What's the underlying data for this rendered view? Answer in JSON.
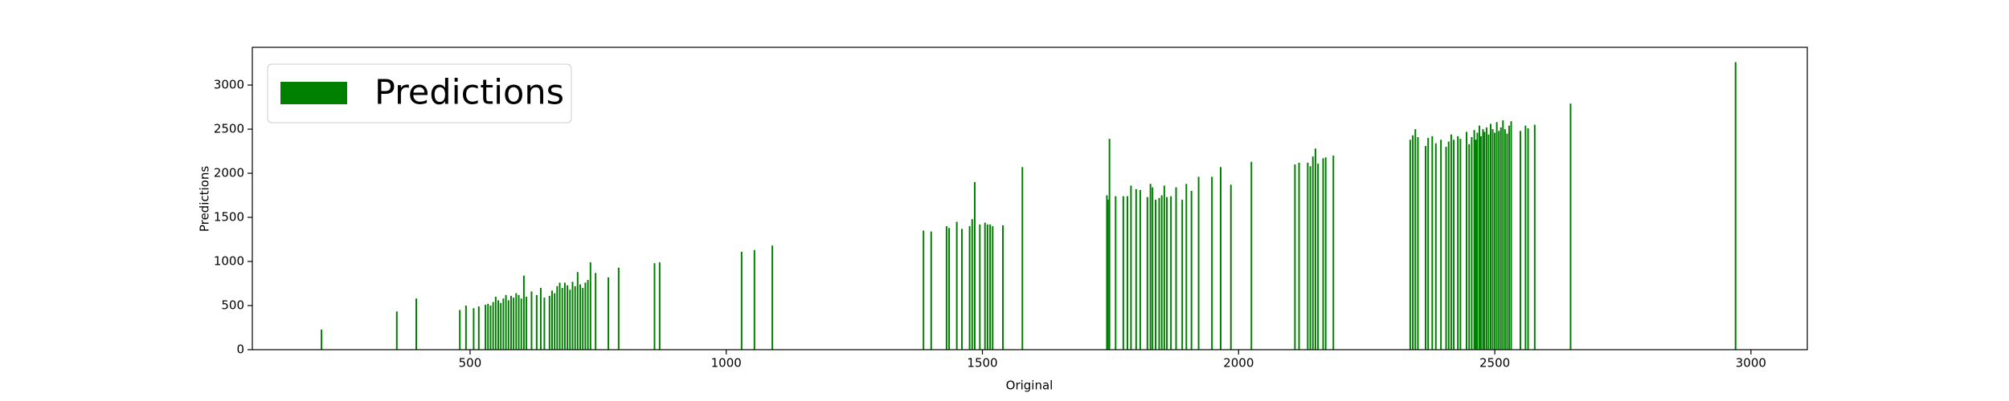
{
  "chart_data": {
    "type": "bar",
    "xlabel": "Original",
    "ylabel": "Predictions",
    "x": [
      210,
      357,
      395,
      480,
      492,
      507,
      517,
      530,
      535,
      540,
      545,
      550,
      555,
      560,
      565,
      570,
      575,
      580,
      585,
      590,
      595,
      600,
      605,
      610,
      620,
      630,
      638,
      645,
      655,
      660,
      665,
      670,
      675,
      680,
      685,
      690,
      695,
      700,
      705,
      710,
      715,
      720,
      725,
      730,
      735,
      745,
      770,
      790,
      860,
      870,
      1030,
      1055,
      1090,
      1385,
      1400,
      1430,
      1435,
      1450,
      1460,
      1475,
      1480,
      1485,
      1495,
      1505,
      1510,
      1515,
      1520,
      1540,
      1578,
      1743,
      1745,
      1748,
      1760,
      1775,
      1783,
      1790,
      1800,
      1808,
      1822,
      1828,
      1832,
      1838,
      1845,
      1850,
      1855,
      1860,
      1868,
      1878,
      1890,
      1898,
      1908,
      1922,
      1948,
      1965,
      1985,
      2025,
      2110,
      2118,
      2135,
      2140,
      2145,
      2150,
      2155,
      2165,
      2170,
      2185,
      2335,
      2340,
      2345,
      2350,
      2365,
      2370,
      2378,
      2385,
      2395,
      2405,
      2410,
      2415,
      2420,
      2428,
      2433,
      2445,
      2450,
      2455,
      2460,
      2463,
      2466,
      2470,
      2473,
      2477,
      2480,
      2484,
      2488,
      2492,
      2496,
      2500,
      2504,
      2508,
      2512,
      2516,
      2520,
      2524,
      2528,
      2532,
      2550,
      2560,
      2565,
      2578,
      2648,
      2970
    ],
    "series": [
      {
        "name": "Predictions",
        "color": "#008000",
        "values": [
          228,
          433,
          580,
          450,
          500,
          470,
          490,
          510,
          520,
          500,
          540,
          600,
          560,
          530,
          580,
          620,
          560,
          610,
          590,
          640,
          620,
          580,
          840,
          600,
          660,
          620,
          700,
          590,
          610,
          670,
          640,
          720,
          760,
          700,
          760,
          730,
          680,
          770,
          720,
          880,
          740,
          700,
          760,
          790,
          990,
          870,
          820,
          930,
          980,
          990,
          1110,
          1130,
          1180,
          1350,
          1340,
          1400,
          1380,
          1450,
          1370,
          1400,
          1480,
          1900,
          1420,
          1440,
          1420,
          1420,
          1400,
          1410,
          2070,
          1750,
          1700,
          2390,
          1740,
          1740,
          1740,
          1860,
          1820,
          1810,
          1730,
          1880,
          1840,
          1700,
          1720,
          1750,
          1860,
          1730,
          1740,
          1840,
          1700,
          1880,
          1800,
          1960,
          1960,
          2070,
          1870,
          2130,
          2100,
          2120,
          2120,
          2080,
          2190,
          2280,
          2110,
          2170,
          2180,
          2200,
          2380,
          2430,
          2500,
          2410,
          2310,
          2400,
          2420,
          2340,
          2380,
          2300,
          2360,
          2440,
          2380,
          2420,
          2390,
          2470,
          2330,
          2410,
          2490,
          2380,
          2460,
          2540,
          2420,
          2500,
          2470,
          2520,
          2440,
          2560,
          2500,
          2460,
          2580,
          2480,
          2520,
          2600,
          2500,
          2450,
          2540,
          2590,
          2480,
          2540,
          2510,
          2550,
          2790,
          3260
        ]
      }
    ],
    "xlim": [
      75,
      3110
    ],
    "ylim": [
      0,
      3428
    ],
    "xticks": [
      500,
      1000,
      1500,
      2000,
      2500,
      3000
    ],
    "yticks": [
      0,
      500,
      1000,
      1500,
      2000,
      2500,
      3000
    ],
    "legend": "upper left"
  }
}
